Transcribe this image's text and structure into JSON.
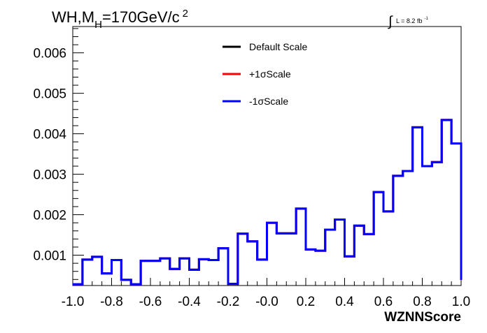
{
  "chart_data": {
    "type": "histogram",
    "title_parts": {
      "main": "WH,M",
      "sub": "H",
      "rest": "=170GeV/c",
      "sup": "2"
    },
    "luminosity": {
      "symbol": "∫",
      "text": "L = 8.2 fb",
      "sup": "-1"
    },
    "xlabel": "WZNNScore",
    "xlim": [
      -1.0,
      1.0
    ],
    "ylim": [
      0.00025,
      0.00665
    ],
    "x_ticks": [
      {
        "v": -1.0,
        "label": "-1.0"
      },
      {
        "v": -0.8,
        "label": "-0.8"
      },
      {
        "v": -0.6,
        "label": "-0.6"
      },
      {
        "v": -0.4,
        "label": "-0.4"
      },
      {
        "v": -0.2,
        "label": "-0.2"
      },
      {
        "v": 0.0,
        "label": "-0.0"
      },
      {
        "v": 0.2,
        "label": "0.2"
      },
      {
        "v": 0.4,
        "label": "0.4"
      },
      {
        "v": 0.6,
        "label": "0.6"
      },
      {
        "v": 0.8,
        "label": "0.8"
      },
      {
        "v": 1.0,
        "label": "1.0"
      }
    ],
    "y_ticks": [
      {
        "v": 0.001,
        "label": "0.001"
      },
      {
        "v": 0.002,
        "label": "0.002"
      },
      {
        "v": 0.003,
        "label": "0.003"
      },
      {
        "v": 0.004,
        "label": "0.004"
      },
      {
        "v": 0.005,
        "label": "0.005"
      },
      {
        "v": 0.006,
        "label": "0.006"
      }
    ],
    "bin_edges_start": -1.0,
    "bin_width": 0.05,
    "series": [
      {
        "name": "Default Scale",
        "color": "#000000",
        "values": [
          0.00028,
          0.00089,
          0.00096,
          0.00055,
          0.00088,
          0.00039,
          0.00028,
          0.00086,
          0.00086,
          0.00092,
          0.00066,
          0.00092,
          0.00064,
          0.0009,
          0.00088,
          0.00117,
          0.00029,
          0.00153,
          0.00134,
          0.00089,
          0.0018,
          0.00154,
          0.00154,
          0.00215,
          0.00114,
          0.00111,
          0.00163,
          0.00188,
          0.00097,
          0.00173,
          0.00152,
          0.00256,
          0.00208,
          0.00296,
          0.00308,
          0.00416,
          0.0032,
          0.0033,
          0.00434,
          0.00376,
          0.00039
        ]
      },
      {
        "name": "+1σScale",
        "color": "#ff0000",
        "values": [
          0.00028,
          0.00089,
          0.00096,
          0.00055,
          0.00088,
          0.00039,
          0.00028,
          0.00086,
          0.00086,
          0.00092,
          0.00066,
          0.00092,
          0.00064,
          0.0009,
          0.00088,
          0.00117,
          0.00029,
          0.00153,
          0.00134,
          0.00089,
          0.0018,
          0.00154,
          0.00154,
          0.00215,
          0.00114,
          0.00111,
          0.00163,
          0.00188,
          0.00097,
          0.00173,
          0.00152,
          0.00256,
          0.00208,
          0.00296,
          0.00308,
          0.00416,
          0.0032,
          0.0033,
          0.00434,
          0.00376,
          0.00039
        ]
      },
      {
        "name": "-1σScale",
        "color": "#0000ff",
        "values": [
          0.00028,
          0.00089,
          0.00096,
          0.00055,
          0.00088,
          0.00039,
          0.00028,
          0.00086,
          0.00086,
          0.00092,
          0.00066,
          0.00092,
          0.00064,
          0.0009,
          0.00088,
          0.00117,
          0.00029,
          0.00153,
          0.00134,
          0.00089,
          0.0018,
          0.00154,
          0.00154,
          0.00215,
          0.00114,
          0.00111,
          0.00163,
          0.00188,
          0.00097,
          0.00173,
          0.00152,
          0.00256,
          0.00208,
          0.00296,
          0.00308,
          0.00416,
          0.0032,
          0.0033,
          0.00434,
          0.00376,
          0.00039
        ]
      }
    ],
    "legend_position": "top-center",
    "grid": false
  }
}
